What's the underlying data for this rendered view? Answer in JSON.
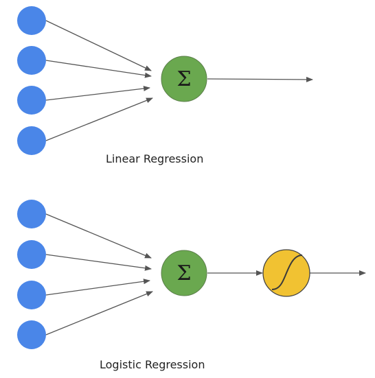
{
  "colors": {
    "input_node": "#4a86e8",
    "sum_node": "#6aa84f",
    "activation_node": "#f1c232",
    "arrow": "#555555",
    "node_outline": "#444444"
  },
  "sum_symbol": "Σ",
  "linear": {
    "caption": "Linear Regression",
    "input_count": 4
  },
  "logistic": {
    "caption": "Logistic Regression",
    "input_count": 4,
    "activation_icon": "sigmoid-curve-icon"
  }
}
